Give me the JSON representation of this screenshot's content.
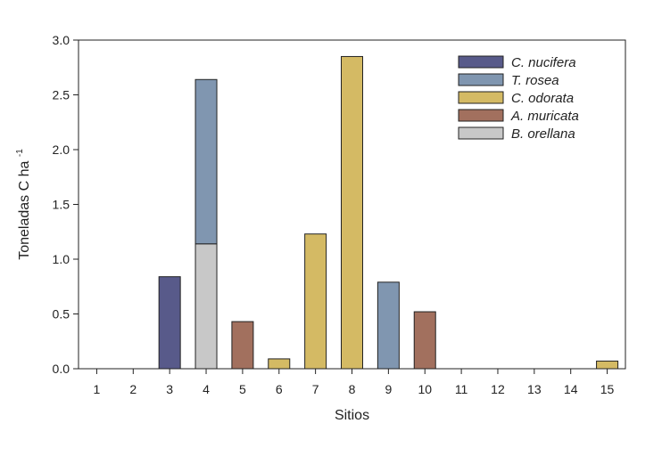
{
  "chart_data": {
    "type": "bar",
    "stacked": true,
    "title": "",
    "xlabel": "Sitios",
    "ylabel": "Toneladas C ha",
    "ylabel_superscript": "-1",
    "ylim": [
      0,
      3.0
    ],
    "yticks": [
      "0.0",
      "0.5",
      "1.0",
      "1.5",
      "2.0",
      "2.5",
      "3.0"
    ],
    "categories": [
      "1",
      "2",
      "3",
      "4",
      "5",
      "6",
      "7",
      "8",
      "9",
      "10",
      "11",
      "12",
      "13",
      "14",
      "15"
    ],
    "legend_position": "top-right",
    "series": [
      {
        "name": "C. nucifera",
        "color": "#585a8a",
        "values": [
          0,
          0,
          0.84,
          0,
          0,
          0,
          0,
          0,
          0,
          0,
          0,
          0,
          0,
          0,
          0
        ]
      },
      {
        "name": "T. rosea",
        "color": "#8096b0",
        "values": [
          0,
          0,
          0,
          1.5,
          0,
          0,
          0,
          0,
          0.79,
          0,
          0,
          0,
          0,
          0,
          0
        ]
      },
      {
        "name": "C. odorata",
        "color": "#d4ba64",
        "values": [
          0,
          0,
          0,
          0,
          0,
          0.09,
          1.23,
          2.85,
          0,
          0,
          0,
          0,
          0,
          0,
          0.07
        ]
      },
      {
        "name": "A. muricata",
        "color": "#a2705e",
        "values": [
          0,
          0,
          0,
          0,
          0.43,
          0,
          0,
          0,
          0,
          0.52,
          0,
          0,
          0,
          0,
          0
        ]
      },
      {
        "name": "B. orellana",
        "color": "#c8c8c8",
        "values": [
          0,
          0,
          0,
          1.14,
          0,
          0,
          0,
          0,
          0,
          0,
          0,
          0,
          0,
          0,
          0
        ]
      }
    ],
    "stack_order": [
      "B. orellana",
      "C. nucifera",
      "C. odorata",
      "A. muricata",
      "T. rosea"
    ]
  }
}
